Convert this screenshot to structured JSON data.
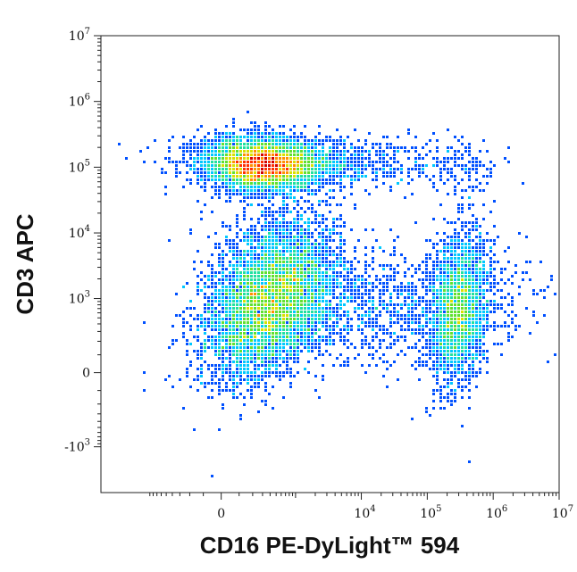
{
  "chart_data": {
    "type": "scatter",
    "title": "",
    "xlabel": "CD16 PE-DyLight™ 594",
    "ylabel": "CD3 APC",
    "x_scale": "biexponential",
    "y_scale": "biexponential",
    "xlim": [
      -5000,
      10000000
    ],
    "ylim": [
      -5000,
      10000000
    ],
    "grid": false,
    "legend": "none",
    "x_ticks": [
      {
        "value": 0,
        "base": "0",
        "exp": ""
      },
      {
        "value": 10000,
        "base": "10",
        "exp": "4"
      },
      {
        "value": 100000,
        "base": "10",
        "exp": "5"
      },
      {
        "value": 1000000,
        "base": "10",
        "exp": "6"
      },
      {
        "value": 10000000,
        "base": "10",
        "exp": "7"
      }
    ],
    "y_ticks": [
      {
        "value": -1000,
        "base": "-10",
        "exp": "3"
      },
      {
        "value": 0,
        "base": "0",
        "exp": ""
      },
      {
        "value": 1000,
        "base": "10",
        "exp": "3"
      },
      {
        "value": 10000,
        "base": "10",
        "exp": "4"
      },
      {
        "value": 100000,
        "base": "10",
        "exp": "5"
      },
      {
        "value": 1000000,
        "base": "10",
        "exp": "6"
      },
      {
        "value": 10000000,
        "base": "10",
        "exp": "7"
      }
    ],
    "colormap": [
      "#0000c8",
      "#0050ff",
      "#00c8ff",
      "#20e0a0",
      "#60e030",
      "#d8e000",
      "#ff9000",
      "#ff3000",
      "#d00000"
    ],
    "populations": [
      {
        "center_x": 300,
        "center_y": 110000,
        "spread_x": 1200,
        "spread_y": 40000,
        "density": "high"
      },
      {
        "center_x": 400,
        "center_y": 900,
        "spread_x": 2500,
        "spread_y": 1200,
        "density": "high"
      },
      {
        "center_x": 300000,
        "center_y": 700,
        "spread_x": 150000,
        "spread_y": 1000,
        "density": "medium"
      }
    ]
  }
}
